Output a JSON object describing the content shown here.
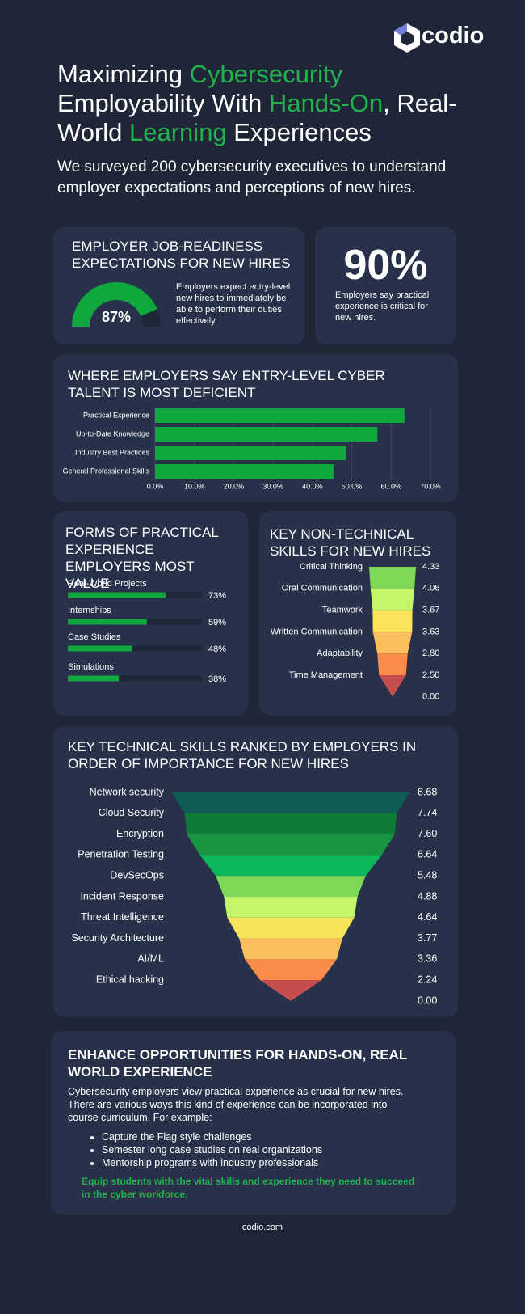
{
  "logo": "codio",
  "header": {
    "title": [
      {
        "text": "Maximizing ",
        "highlight": false
      },
      {
        "text": "Cybersecurity",
        "highlight": true
      },
      {
        "text": " Employability With ",
        "highlight": false
      },
      {
        "text": "Hands-On",
        "highlight": true
      },
      {
        "text": ", Real-World ",
        "highlight": false
      },
      {
        "text": "Learning",
        "highlight": true
      },
      {
        "text": " Experiences",
        "highlight": false
      }
    ],
    "highlight_color": "#22b24c",
    "intro": "We surveyed 200 cybersecurity executives to understand employer expectations and perceptions of new hires."
  },
  "stat": {
    "value": "90%",
    "text": "Employers say practical experience is critical for new hires."
  },
  "chart_data": [
    {
      "type": "gauge",
      "title": "EMPLOYER JOB-READINESS EXPECTATIONS FOR NEW HIRES",
      "value": 87,
      "value_label": "87%",
      "ylim": [
        0,
        100
      ],
      "color": "#10a83e",
      "note": "Employers expect entry-level new hires to immediately be able to perform their duties effectively."
    },
    {
      "type": "bar",
      "orientation": "horizontal",
      "title": "WHERE EMPLOYERS SAY ENTRY-LEVEL CYBER TALENT IS MOST DEFICIENT",
      "categories": [
        "Practical Experience",
        "Up-to-Date Knowledge",
        "Industry Best Practices",
        "General Professional Skills"
      ],
      "values": [
        63.4,
        56.5,
        48.5,
        45.4
      ],
      "color": "#10a83e",
      "grid": true,
      "xlim": [
        0,
        70
      ],
      "xticks": [
        {
          "value": 0,
          "label": "0.0%"
        },
        {
          "value": 10,
          "label": "10.0%"
        },
        {
          "value": 20,
          "label": "20.0%"
        },
        {
          "value": 30,
          "label": "30.0%"
        },
        {
          "value": 40,
          "label": "40.0%"
        },
        {
          "value": 50,
          "label": "50.0%"
        },
        {
          "value": 60,
          "label": "60.0%"
        },
        {
          "value": 70,
          "label": "70.0%"
        }
      ]
    },
    {
      "type": "progress",
      "title": "FORMS OF PRACTICAL EXPERIENCE EMPLOYERS MOST VALUE",
      "categories": [
        "Real-World Projects",
        "Internships",
        "Case Studies",
        "Simulations"
      ],
      "values": [
        73,
        59,
        48,
        38
      ],
      "value_labels": [
        "73%",
        "59%",
        "48%",
        "38%"
      ],
      "xlim": [
        0,
        100
      ],
      "color": "#10a83e"
    },
    {
      "type": "funnel",
      "title": "KEY NON-TECHNICAL SKILLS FOR NEW HIRES",
      "categories": [
        "Critical Thinking",
        "Oral Communication",
        "Teamwork",
        "Written Communication",
        "Adaptability",
        "Time Management",
        null
      ],
      "values": [
        4.33,
        4.06,
        3.67,
        3.63,
        2.8,
        2.5,
        0
      ],
      "value_labels": [
        "4.33",
        "4.06",
        "3.67",
        "3.63",
        "2.80",
        "2.50",
        "0.00"
      ],
      "colors": [
        "#7ed957",
        "#c5f56b",
        "#fde35a",
        "#fdbe5c",
        "#f98c4a",
        "#c44d4e"
      ]
    },
    {
      "type": "funnel",
      "title": "KEY TECHNICAL SKILLS RANKED BY EMPLOYERS IN ORDER OF IMPORTANCE FOR NEW HIRES",
      "categories": [
        "Network security",
        "Cloud Security",
        "Encryption",
        "Penetration Testing",
        "DevSecOps",
        "Incident Response",
        "Threat Intelligence",
        "Security Architecture",
        "AI/ML",
        "Ethical hacking",
        null
      ],
      "values": [
        8.68,
        7.74,
        7.6,
        6.64,
        5.48,
        4.88,
        4.64,
        3.77,
        3.36,
        2.24,
        0
      ],
      "value_labels": [
        "8.68",
        "7.74",
        "7.60",
        "6.64",
        "5.48",
        "4.88",
        "4.64",
        "3.77",
        "3.36",
        "2.24",
        "0.00"
      ],
      "colors": [
        "#0e5e55",
        "#0e7a3a",
        "#17963f",
        "#0bb85a",
        "#7ed957",
        "#c5f56b",
        "#f8e45a",
        "#fdbf5c",
        "#f98c4a",
        "#c44d4e"
      ]
    }
  ],
  "closing": {
    "title": "ENHANCE OPPORTUNITIES FOR HANDS-ON, REAL WORLD EXPERIENCE",
    "text": "Cybersecurity employers view practical experience as crucial for new hires. There are various ways this kind of experience can be incorporated into course curriculum. For example:",
    "bullets": [
      "Capture the Flag style challenges",
      "Semester long case studies on real organizations",
      "Mentorship programs with industry professionals"
    ],
    "callout": "Equip students with the vital skills and experience they need to succeed in the cyber workforce."
  },
  "footer": "codio.com"
}
